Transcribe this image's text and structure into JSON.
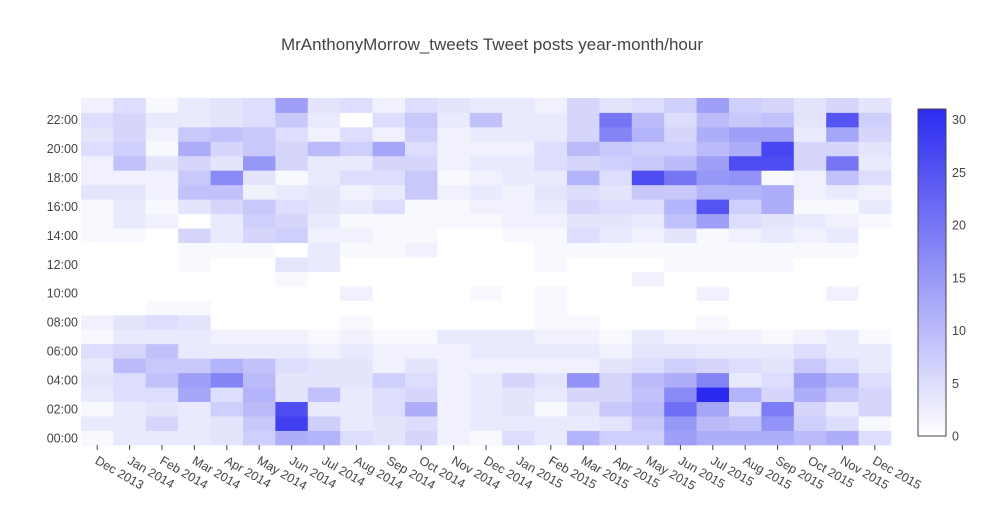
{
  "chart_data": {
    "type": "heatmap",
    "title": "MrAnthonyMorrow_tweets Tweet posts year-month/hour",
    "xlabel": "",
    "ylabel": "",
    "x": [
      "Dec 2013",
      "Jan 2014",
      "Feb 2014",
      "Mar 2014",
      "Apr 2014",
      "May 2014",
      "Jun 2014",
      "Jul 2014",
      "Aug 2014",
      "Sep 2014",
      "Oct 2014",
      "Nov 2014",
      "Dec 2014",
      "Jan 2015",
      "Feb 2015",
      "Mar 2015",
      "Apr 2015",
      "May 2015",
      "Jun 2015",
      "Jul 2015",
      "Aug 2015",
      "Sep 2015",
      "Oct 2015",
      "Nov 2015",
      "Dec 2015"
    ],
    "y": [
      0,
      1,
      2,
      3,
      4,
      5,
      6,
      7,
      8,
      9,
      10,
      11,
      12,
      13,
      14,
      15,
      16,
      17,
      18,
      19,
      20,
      21,
      22,
      23
    ],
    "y_tick_labels": [
      "00:00",
      "02:00",
      "04:00",
      "06:00",
      "08:00",
      "10:00",
      "12:00",
      "14:00",
      "16:00",
      "18:00",
      "20:00",
      "22:00"
    ],
    "y_tick_hours": [
      0,
      2,
      4,
      6,
      8,
      10,
      12,
      14,
      16,
      18,
      20,
      22
    ],
    "z": [
      [
        1,
        3,
        3,
        3,
        4,
        7,
        12,
        11,
        5,
        4,
        6,
        2,
        1,
        5,
        3,
        11,
        7,
        7,
        14,
        12,
        12,
        12,
        10,
        12,
        5
      ],
      [
        3,
        3,
        6,
        3,
        4,
        8,
        28,
        7,
        3,
        4,
        5,
        2,
        3,
        3,
        3,
        3,
        4,
        8,
        15,
        10,
        9,
        16,
        7,
        5,
        1
      ],
      [
        1,
        3,
        4,
        3,
        7,
        10,
        26,
        3,
        3,
        5,
        12,
        2,
        3,
        4,
        1,
        4,
        8,
        10,
        21,
        13,
        5,
        19,
        6,
        3,
        6
      ],
      [
        3,
        5,
        5,
        13,
        5,
        11,
        4,
        9,
        3,
        5,
        6,
        2,
        3,
        4,
        3,
        6,
        6,
        9,
        17,
        31,
        11,
        6,
        12,
        8,
        6
      ],
      [
        4,
        5,
        9,
        14,
        18,
        10,
        4,
        4,
        4,
        7,
        5,
        2,
        3,
        6,
        4,
        16,
        6,
        10,
        12,
        18,
        3,
        5,
        14,
        11,
        5
      ],
      [
        3,
        10,
        8,
        8,
        11,
        9,
        5,
        4,
        4,
        2,
        4,
        2,
        2,
        2,
        2,
        2,
        4,
        5,
        7,
        6,
        5,
        4,
        8,
        5,
        3
      ],
      [
        5,
        6,
        9,
        3,
        3,
        3,
        3,
        2,
        3,
        2,
        2,
        2,
        3,
        3,
        3,
        3,
        2,
        4,
        4,
        3,
        3,
        3,
        5,
        3,
        3
      ],
      [
        1,
        3,
        3,
        3,
        2,
        2,
        2,
        1,
        2,
        1,
        1,
        3,
        3,
        3,
        2,
        2,
        1,
        3,
        2,
        2,
        2,
        1,
        2,
        3,
        1
      ],
      [
        2,
        4,
        5,
        4,
        0,
        0,
        0,
        0,
        1,
        0,
        0,
        0,
        0,
        0,
        1,
        1,
        0,
        0,
        0,
        1,
        0,
        0,
        0,
        0,
        0
      ],
      [
        0,
        0,
        1,
        1,
        0,
        0,
        0,
        0,
        0,
        0,
        0,
        0,
        0,
        0,
        1,
        0,
        0,
        0,
        0,
        0,
        0,
        0,
        0,
        0,
        0
      ],
      [
        0,
        0,
        0,
        0,
        0,
        0,
        0,
        0,
        2,
        0,
        0,
        0,
        1,
        0,
        1,
        0,
        0,
        0,
        0,
        2,
        0,
        0,
        0,
        2,
        0
      ],
      [
        0,
        0,
        0,
        0,
        0,
        0,
        1,
        0,
        0,
        0,
        0,
        0,
        0,
        0,
        0,
        0,
        0,
        2,
        0,
        0,
        0,
        0,
        0,
        0,
        0
      ],
      [
        0,
        0,
        0,
        1,
        0,
        0,
        4,
        3,
        0,
        0,
        0,
        0,
        0,
        0,
        1,
        0,
        0,
        0,
        1,
        1,
        1,
        1,
        0,
        0,
        0
      ],
      [
        0,
        0,
        0,
        1,
        1,
        1,
        0,
        3,
        1,
        1,
        2,
        0,
        0,
        0,
        1,
        1,
        1,
        1,
        1,
        1,
        1,
        1,
        1,
        1,
        0
      ],
      [
        1,
        1,
        0,
        6,
        3,
        6,
        7,
        2,
        2,
        1,
        1,
        0,
        0,
        1,
        1,
        5,
        3,
        2,
        4,
        1,
        2,
        3,
        2,
        3,
        0
      ],
      [
        1,
        3,
        2,
        0,
        3,
        7,
        6,
        3,
        1,
        1,
        1,
        1,
        1,
        2,
        2,
        4,
        4,
        3,
        9,
        14,
        5,
        4,
        3,
        2,
        1
      ],
      [
        1,
        3,
        1,
        4,
        6,
        8,
        5,
        4,
        3,
        5,
        1,
        1,
        2,
        2,
        3,
        6,
        5,
        5,
        11,
        25,
        7,
        12,
        1,
        1,
        3
      ],
      [
        4,
        4,
        2,
        9,
        9,
        2,
        3,
        4,
        2,
        3,
        8,
        2,
        3,
        2,
        4,
        5,
        4,
        8,
        8,
        11,
        11,
        12,
        2,
        3,
        2
      ],
      [
        2,
        2,
        2,
        8,
        17,
        4,
        1,
        3,
        5,
        5,
        8,
        1,
        2,
        3,
        3,
        11,
        5,
        26,
        20,
        15,
        16,
        1,
        2,
        9,
        5
      ],
      [
        2,
        9,
        4,
        6,
        4,
        15,
        6,
        3,
        3,
        6,
        6,
        2,
        3,
        3,
        5,
        6,
        7,
        8,
        10,
        14,
        26,
        26,
        6,
        20,
        3
      ],
      [
        5,
        7,
        1,
        12,
        6,
        8,
        6,
        10,
        7,
        13,
        5,
        2,
        2,
        2,
        5,
        10,
        8,
        7,
        7,
        10,
        12,
        27,
        6,
        6,
        4
      ],
      [
        4,
        6,
        2,
        8,
        9,
        8,
        5,
        2,
        5,
        2,
        7,
        2,
        3,
        3,
        3,
        6,
        18,
        11,
        6,
        12,
        14,
        14,
        3,
        13,
        6
      ],
      [
        5,
        6,
        3,
        3,
        4,
        5,
        8,
        3,
        0,
        5,
        8,
        3,
        9,
        3,
        3,
        6,
        20,
        10,
        5,
        10,
        8,
        9,
        4,
        25,
        7
      ],
      [
        2,
        5,
        1,
        3,
        4,
        5,
        14,
        4,
        5,
        2,
        5,
        4,
        3,
        3,
        2,
        6,
        4,
        5,
        7,
        14,
        7,
        6,
        4,
        6,
        4
      ]
    ],
    "colorscale": {
      "min": 0,
      "max": 31,
      "low_color": "#ffffff",
      "high_color": "#2b2bf0"
    },
    "colorbar_ticks": [
      0,
      5,
      10,
      15,
      20,
      25,
      30
    ],
    "grid": false
  }
}
